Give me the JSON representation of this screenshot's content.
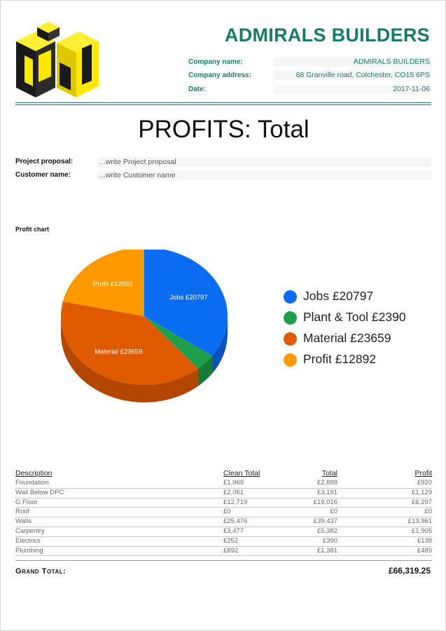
{
  "header": {
    "company_title": "ADMIRALS BUILDERS",
    "info": [
      {
        "label": "Company name:",
        "value": "ADMIRALS BUILDERS"
      },
      {
        "label": "Company address:",
        "value": "68 Granville road, Colchester, CO15 6PS"
      },
      {
        "label": "Date:",
        "value": "2017-11-06"
      }
    ]
  },
  "title": "PROFITS: Total",
  "fields": [
    {
      "label": "Project proposal:",
      "value": "...write Project proposal"
    },
    {
      "label": "Customer name:",
      "value": "...write Customer name"
    }
  ],
  "chart_label": "Profit chart",
  "chart_data": {
    "type": "pie",
    "categories": [
      "Jobs",
      "Plant & Tool",
      "Material",
      "Profit"
    ],
    "values": [
      20797,
      2390,
      23659,
      12892
    ],
    "slice_labels": [
      "Jobs £20797",
      "Plant & Tool £2390",
      "Material £23659",
      "Profit £12892"
    ],
    "legend": [
      "Jobs £20797",
      "Plant & Tool £2390",
      "Material £23659",
      "Profit £12892"
    ],
    "colors": [
      "#0a6cf0",
      "#1f9e4c",
      "#e05a00",
      "#ff9900"
    ],
    "side_colors": [
      "#0a52b8",
      "#177a39",
      "#b34600",
      "#cc7a00"
    ],
    "legend_position": "right"
  },
  "table": {
    "headers": [
      "Description",
      "Clean Total",
      "Total",
      "Profit"
    ],
    "rows": [
      [
        "Foundation",
        "£1,969",
        "£2,888",
        "£920"
      ],
      [
        "Wall Below DPC",
        "£2,061",
        "£3,191",
        "£1,129"
      ],
      [
        "G Floor",
        "£12,719",
        "£19,016",
        "£6,297"
      ],
      [
        "Roof",
        "£0",
        "£0",
        "£0"
      ],
      [
        "Walls",
        "£25,476",
        "£39,437",
        "£13,961"
      ],
      [
        "Carpentry",
        "£3,477",
        "£5,382",
        "£1,905"
      ],
      [
        "Electrics",
        "£252",
        "£390",
        "£138"
      ],
      [
        "Plumbing",
        "£892",
        "£1,381",
        "£489"
      ]
    ]
  },
  "grand_total": {
    "label": "Grand Total:",
    "value": "£66,319.25"
  }
}
